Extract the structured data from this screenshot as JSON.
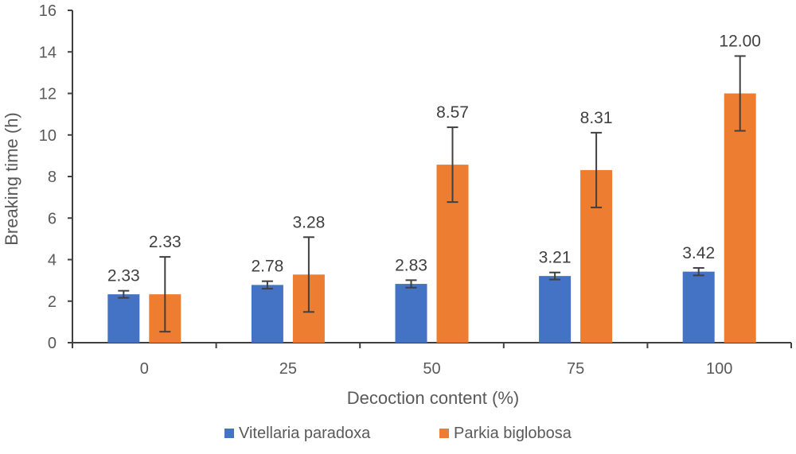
{
  "chart_data": {
    "type": "bar",
    "title": "",
    "xlabel": "Decoction content (%)",
    "ylabel": "Breaking time (h)",
    "ylim": [
      0,
      16
    ],
    "yticks": [
      0,
      2,
      4,
      6,
      8,
      10,
      12,
      14,
      16
    ],
    "categories": [
      "0",
      "25",
      "50",
      "75",
      "100"
    ],
    "legend_position": "bottom",
    "series": [
      {
        "name": "Vitellaria paradoxa",
        "color": "#4472C4",
        "values": [
          2.33,
          2.78,
          2.83,
          3.21,
          3.42
        ],
        "labels": [
          "2.33",
          "2.78",
          "2.83",
          "3.21",
          "3.42"
        ],
        "errors": [
          0.17,
          0.18,
          0.18,
          0.17,
          0.18
        ]
      },
      {
        "name": "Parkia biglobosa",
        "color": "#ED7D31",
        "values": [
          2.33,
          3.28,
          8.57,
          8.31,
          12.0
        ],
        "labels": [
          "2.33",
          "3.28",
          "8.57",
          "8.31",
          "12.00"
        ],
        "errors": [
          1.8,
          1.8,
          1.8,
          1.8,
          1.8
        ]
      }
    ]
  }
}
